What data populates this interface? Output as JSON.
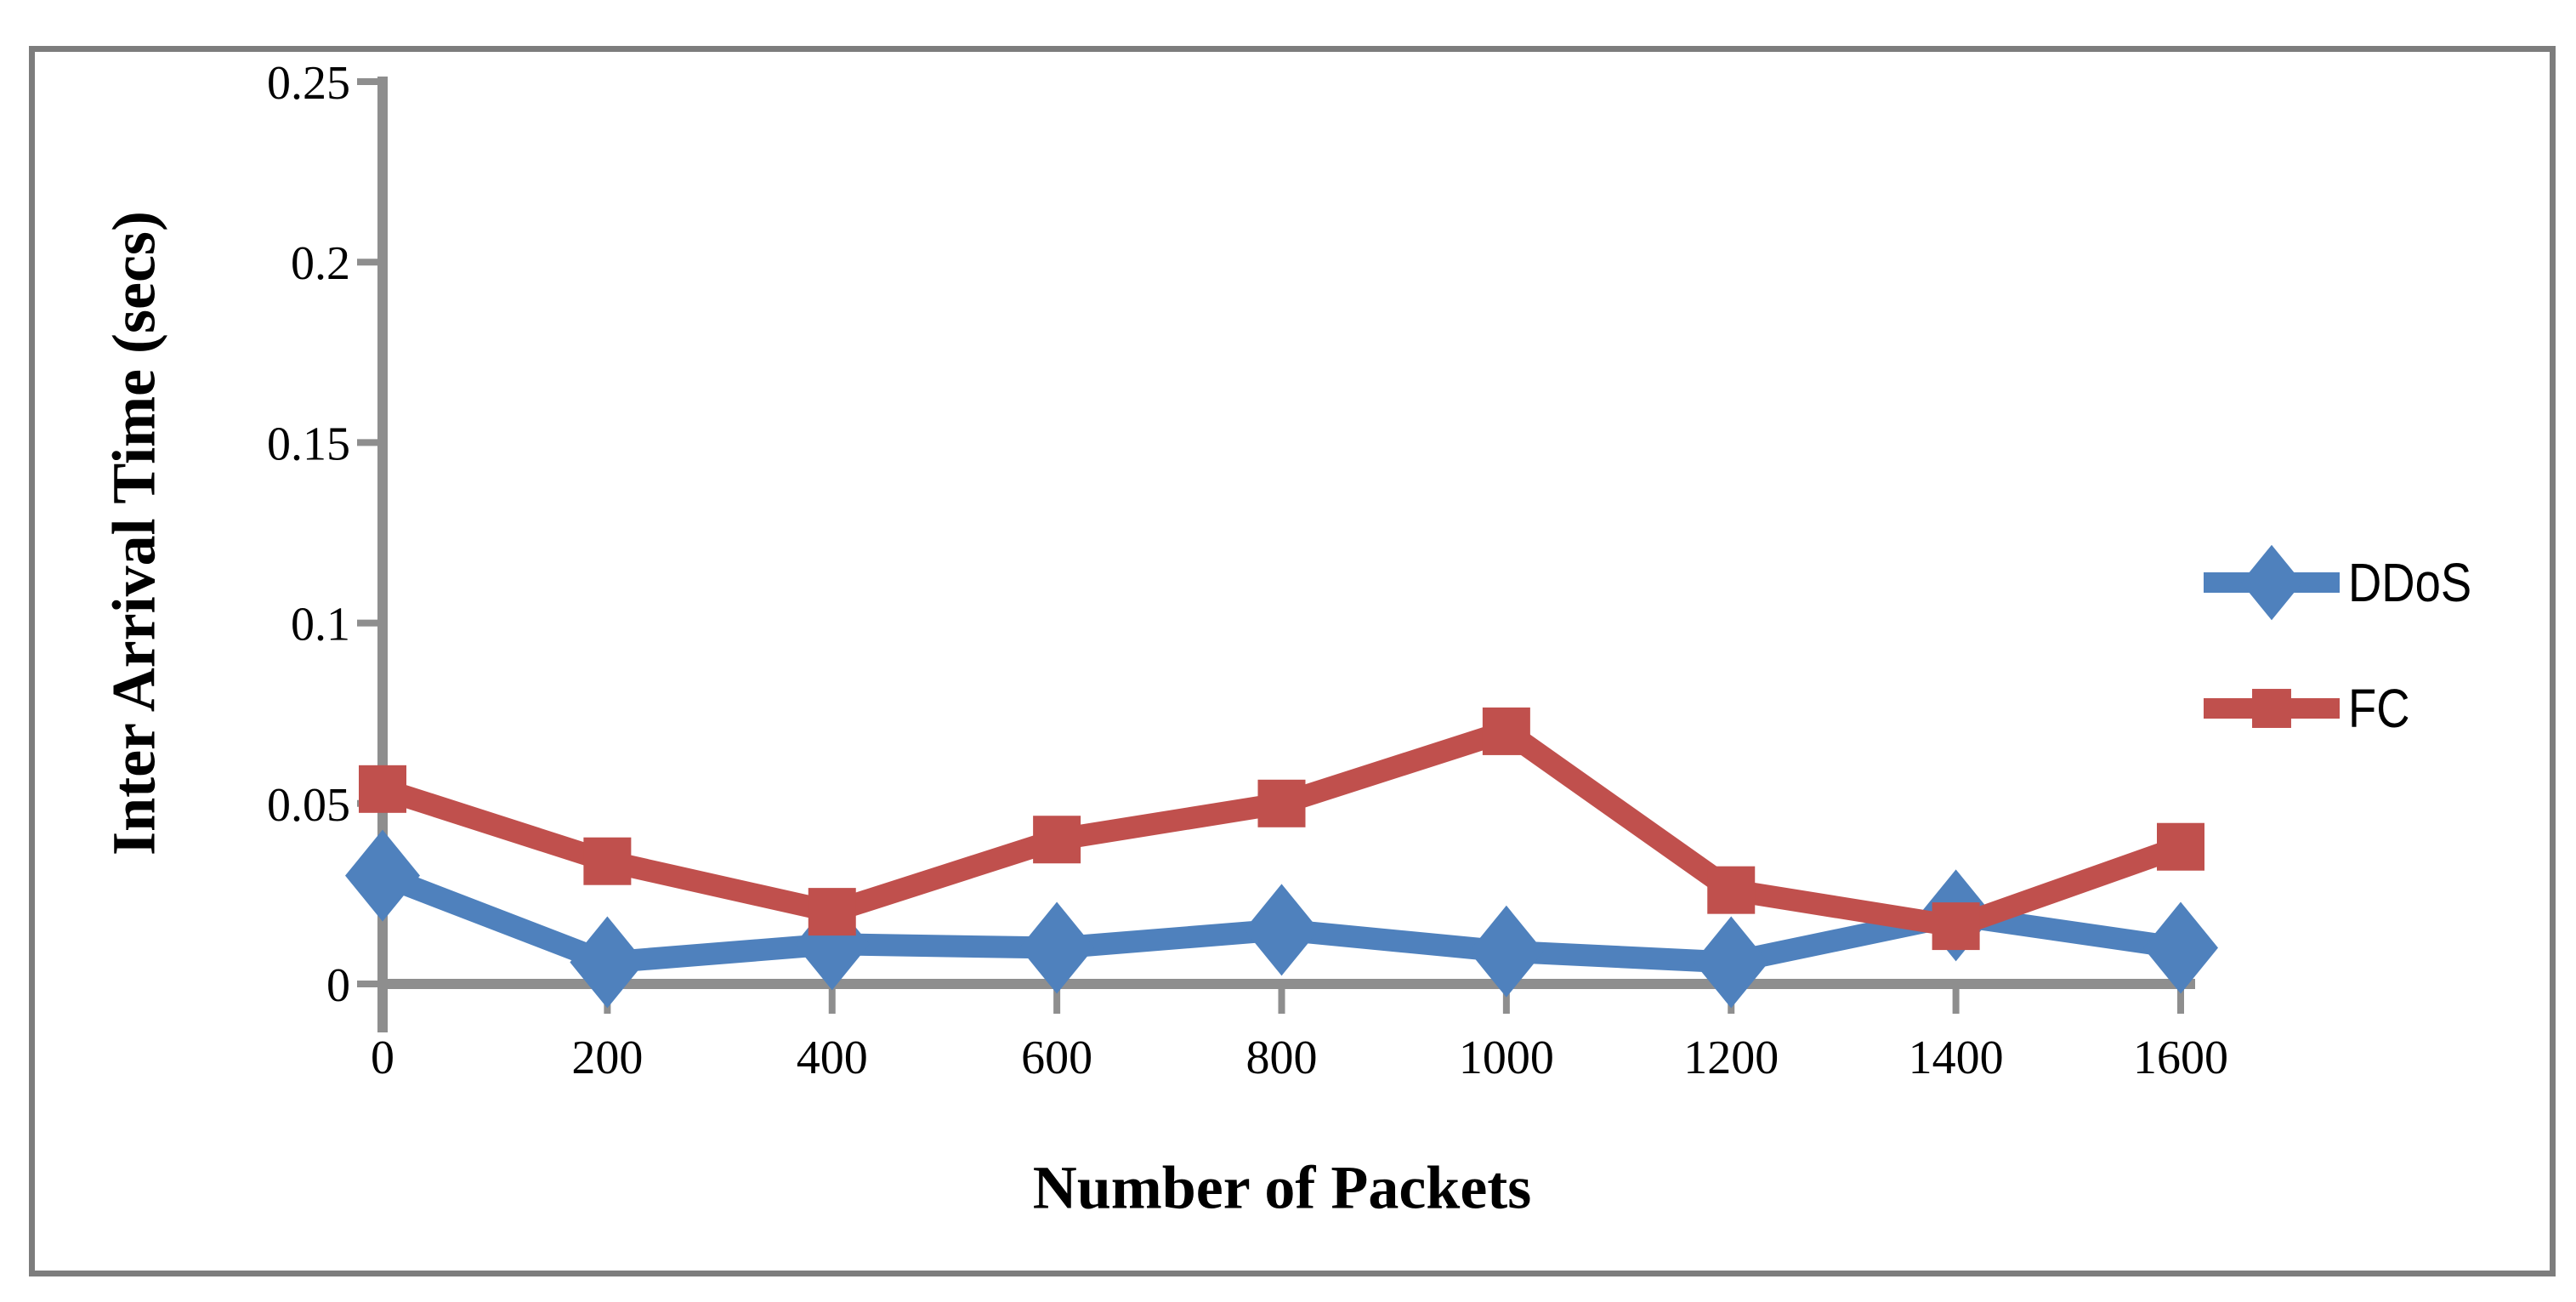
{
  "figure": {
    "background": "#ffffff",
    "border_color": "#7d7d7d"
  },
  "chart_data": {
    "type": "line",
    "title": "",
    "xlabel": "Number of Packets",
    "ylabel": "Inter Arrival Time (secs)",
    "xlim": [
      0,
      1600
    ],
    "ylim": [
      0,
      0.25
    ],
    "grid": false,
    "legend_position": "right",
    "axis_color": "#8e8e8e",
    "text_color": "#000000",
    "x": [
      0,
      200,
      400,
      600,
      800,
      1000,
      1200,
      1400,
      1600
    ],
    "xtick_labels": [
      "0",
      "200",
      "400",
      "600",
      "800",
      "1000",
      "1200",
      "1400",
      "1600"
    ],
    "ytick_values": [
      0,
      0.05,
      0.1,
      0.15,
      0.2,
      0.25
    ],
    "ytick_labels": [
      "0",
      "0.05",
      "0.1",
      "0.15",
      "0.2",
      "0.25"
    ],
    "series": [
      {
        "name": "DDoS",
        "color": "#4F81BD",
        "marker": "diamond",
        "values": [
          0.03,
          0.006,
          0.011,
          0.01,
          0.015,
          0.009,
          0.006,
          0.019,
          0.01
        ]
      },
      {
        "name": "FC",
        "color": "#C0504D",
        "marker": "square",
        "values": [
          0.054,
          0.034,
          0.02,
          0.04,
          0.05,
          0.07,
          0.026,
          0.016,
          0.038
        ]
      }
    ]
  }
}
